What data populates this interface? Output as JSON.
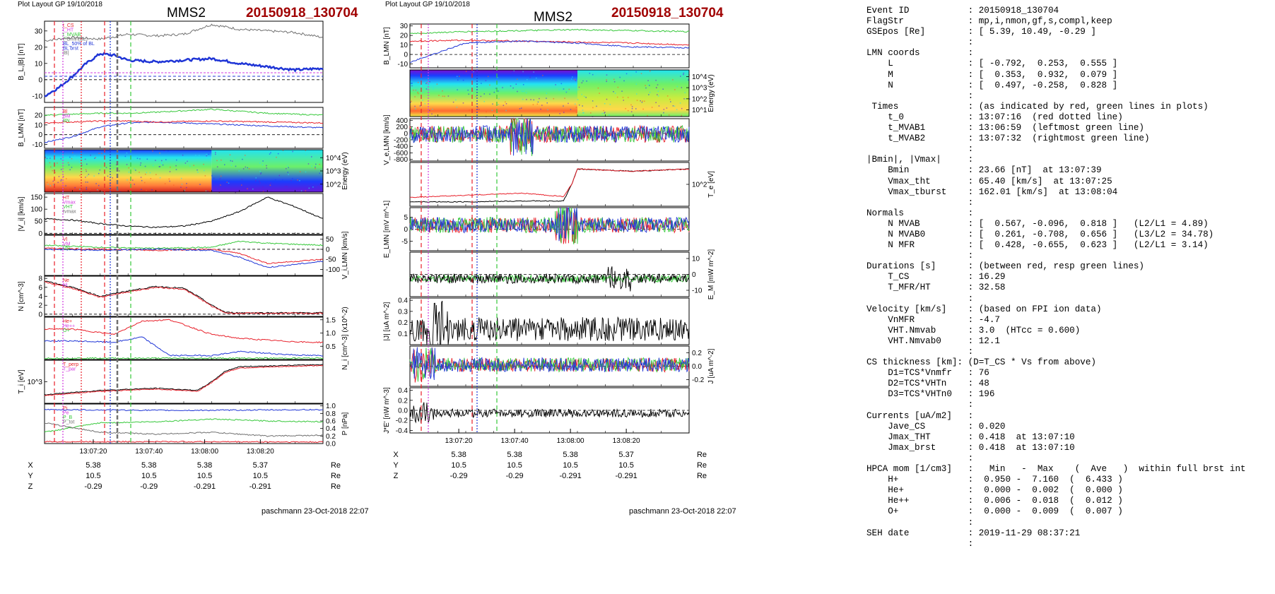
{
  "left": {
    "header_note": "Plot Layout GP 19/10/2018",
    "spacecraft": "MMS2",
    "event": "20150918_130704",
    "footer": "paschmann 23-Oct-2018 22:07",
    "time_ticks": [
      "13:07:20",
      "13:07:40",
      "13:08:00",
      "13:08:20"
    ],
    "position_rows": [
      {
        "label": "X",
        "values": [
          "5.38",
          "5.38",
          "5.38",
          "5.37"
        ],
        "unit": "Re"
      },
      {
        "label": "Y",
        "values": [
          "10.5",
          "10.5",
          "10.5",
          "10.5"
        ],
        "unit": "Re"
      },
      {
        "label": "Z",
        "values": [
          "-0.29",
          "-0.29",
          "-0.291",
          "-0.291"
        ],
        "unit": "Re"
      }
    ]
  },
  "right": {
    "header_note": "Plot Layout GP 19/10/2018",
    "spacecraft": "MMS2",
    "event": "20150918_130704",
    "footer": "paschmann 23-Oct-2018 22:07",
    "time_ticks": [
      "13:07:20",
      "13:07:40",
      "13:08:00",
      "13:08:20"
    ],
    "position_rows": [
      {
        "label": "X",
        "values": [
          "5.38",
          "5.38",
          "5.38",
          "5.37"
        ],
        "unit": "Re"
      },
      {
        "label": "Y",
        "values": [
          "10.5",
          "10.5",
          "10.5",
          "10.5"
        ],
        "unit": "Re"
      },
      {
        "label": "Z",
        "values": [
          "-0.29",
          "-0.29",
          "-0.291",
          "-0.291"
        ],
        "unit": "Re"
      }
    ]
  },
  "colors": {
    "blue": "#1f35d6",
    "red": "#e8202a",
    "green": "#36c83a",
    "gray": "#707070",
    "magenta": "#d23be0",
    "darkred": "#a00000"
  },
  "info_lines": [
    "Event ID           : 20150918_130704",
    "FlagStr            : mp,i,nmon,gf,s,compl,keep",
    "GSEpos [Re]        : [ 5.39, 10.49, -0.29 ]",
    "                   :",
    "LMN coords         :",
    "    L              : [ -0.792,  0.253,  0.555 ]",
    "    M              : [  0.353,  0.932,  0.079 ]",
    "    N              : [  0.497, -0.258,  0.828 ]",
    "                   :",
    " Times             : (as indicated by red, green lines in plots)",
    "    t_0            : 13:07:16  (red dotted line)",
    "    t_MVAB1        : 13:06:59  (leftmost green line)",
    "    t_MVAB2        : 13:07:32  (rightmost green line)",
    "                   :",
    "|Bmin|, |Vmax|     :",
    "    Bmin           : 23.66 [nT]  at 13:07:39",
    "    Vmax_tht       : 65.40 [km/s]  at 13:07:25",
    "    Vmax_tburst    : 162.01 [km/s]  at 13:08:04",
    "                   :",
    "Normals            :",
    "    N MVAB         : [  0.567, -0.096,  0.818 ]   (L2/L1 = 4.89)",
    "    N MVAB0        : [  0.261, -0.708,  0.656 ]   (L3/L2 = 34.78)",
    "    N MFR          : [  0.428, -0.655,  0.623 ]   (L2/L1 = 3.14)",
    "                   :",
    "Durations [s]      : (between red, resp green lines)",
    "    T_CS           : 16.29",
    "    T_MFR/HT       : 32.58",
    "                   :",
    "Velocity [km/s]    : (based on FPI ion data)",
    "    VnMFR          : -4.7",
    "    VHT.Nmvab      : 3.0  (HTcc = 0.600)",
    "    VHT.Nmvab0     : 12.1",
    "                   :",
    "CS thickness [km]: (D=T_CS * Vs from above)",
    "    D1=TCS*Vnmfr   : 76",
    "    D2=TCS*VHTn    : 48",
    "    D3=TCS*VHTn0   : 196",
    "                   :",
    "Currents [uA/m2]   :",
    "    Jave_CS        : 0.020",
    "    Jmax_THT       : 0.418  at 13:07:10",
    "    Jmax_brst      : 0.418  at 13:07:10",
    "                   :",
    "HPCA mom [1/cm3]   :   Min   -  Max    (  Ave   )  within full brst int",
    "    H+             :  0.950 -  7.160  (  6.433 )",
    "    He+            :  0.000 -  0.002  (  0.000 )",
    "    He++           :  0.006 -  0.018  (  0.012 )",
    "    O+             :  0.000 -  0.009  (  0.007 )",
    "                   :",
    "SEH date           : 2019-11-29 08:37:21",
    "                   :"
  ],
  "chart_data": [
    {
      "type": "line",
      "panel": "left-1",
      "ylabel": "B_L,|B| [nT]",
      "yticks": [
        "30",
        "20",
        "10",
        "0",
        "-10"
      ],
      "ylim": [
        -14,
        36
      ],
      "legend": [
        "t_CS",
        "t_HT",
        "t_MVAB",
        "t_Bmin(BL)",
        "BL_50% of BL",
        "BL brst",
        "|B|"
      ],
      "series": [
        {
          "name": "|B|",
          "color": "gray",
          "x": [
            0,
            10,
            20,
            30,
            40,
            50,
            60,
            70,
            80,
            90,
            100
          ],
          "y": [
            24,
            26,
            25,
            28,
            27,
            28,
            34,
            31,
            30,
            29,
            26
          ]
        },
        {
          "name": "BL",
          "color": "blue",
          "x": [
            0,
            5,
            10,
            15,
            20,
            25,
            30,
            40,
            50,
            60,
            70,
            80,
            90,
            100
          ],
          "y": [
            -10,
            -5,
            2,
            10,
            16,
            15,
            12,
            11,
            12,
            13,
            10,
            8,
            6,
            7
          ]
        }
      ]
    },
    {
      "type": "line",
      "panel": "left-2",
      "ylabel": "B_LMN [nT]",
      "yticks": [
        "20",
        "10",
        "0",
        "-10"
      ],
      "ylim": [
        -14,
        28
      ],
      "legend": [
        "Bl",
        "BM",
        "BN"
      ],
      "series": [
        {
          "name": "BL",
          "color": "blue",
          "x": [
            0,
            10,
            20,
            30,
            40,
            60,
            80,
            100
          ],
          "y": [
            -8,
            -2,
            8,
            12,
            13,
            11,
            9,
            7
          ]
        },
        {
          "name": "BM",
          "color": "green",
          "x": [
            0,
            10,
            20,
            30,
            40,
            60,
            80,
            100
          ],
          "y": [
            20,
            21,
            22,
            22,
            23,
            26,
            22,
            20
          ]
        },
        {
          "name": "BN",
          "color": "red",
          "x": [
            0,
            10,
            20,
            30,
            40,
            60,
            80,
            100
          ],
          "y": [
            12,
            13,
            14,
            14,
            13,
            14,
            13,
            12
          ]
        }
      ]
    },
    {
      "type": "heatmap",
      "panel": "left-3",
      "ylabel": "Energy (eV)",
      "yticks": [
        "10^4",
        "10^3",
        "10^2"
      ],
      "note": "ion energy spectrogram"
    },
    {
      "type": "line",
      "panel": "left-4",
      "ylabel": "|V_i| [km/s]",
      "yticks": [
        "150",
        "100",
        "50",
        "0"
      ],
      "ylim": [
        -5,
        165
      ],
      "legend": [
        "HT",
        "Vmax",
        "VHT",
        "tvmax"
      ],
      "series": [
        {
          "name": "|Vi|",
          "color": "black",
          "x": [
            0,
            10,
            20,
            30,
            40,
            50,
            60,
            70,
            80,
            90,
            100
          ],
          "y": [
            60,
            55,
            40,
            30,
            25,
            30,
            50,
            90,
            150,
            110,
            60
          ]
        }
      ]
    },
    {
      "type": "line",
      "panel": "left-5",
      "ylabel": "V_i,LMN [km/s]",
      "yticks": [
        "50",
        "0",
        "-50",
        "-100"
      ],
      "ylim": [
        -130,
        70
      ],
      "legend": [
        "Vl",
        "VM",
        "VN"
      ],
      "series": [
        {
          "name": "VL",
          "color": "green",
          "x": [
            0,
            20,
            40,
            60,
            70,
            80,
            100
          ],
          "y": [
            20,
            10,
            5,
            10,
            40,
            30,
            20
          ]
        },
        {
          "name": "VM",
          "color": "red",
          "x": [
            0,
            20,
            40,
            60,
            70,
            80,
            100
          ],
          "y": [
            5,
            0,
            -5,
            0,
            -20,
            -70,
            -50
          ]
        },
        {
          "name": "VN",
          "color": "blue",
          "x": [
            0,
            20,
            40,
            60,
            70,
            80,
            100
          ],
          "y": [
            0,
            -5,
            0,
            -5,
            -40,
            -90,
            -60
          ]
        }
      ]
    },
    {
      "type": "line",
      "panel": "left-6",
      "ylabel": "N [cm^-3]",
      "yticks": [
        "8",
        "6",
        "4",
        "2",
        "0"
      ],
      "ylim": [
        -0.5,
        8.5
      ],
      "legend": [
        "Ne",
        "Ni"
      ],
      "series": [
        {
          "name": "Ne",
          "color": "black",
          "x": [
            0,
            10,
            20,
            30,
            40,
            50,
            55,
            60,
            65,
            70,
            100
          ],
          "y": [
            7.5,
            6,
            4,
            5.2,
            6.2,
            5.8,
            4,
            2,
            0.4,
            0.3,
            0.3
          ]
        },
        {
          "name": "Ni",
          "color": "red",
          "x": [
            0,
            10,
            20,
            30,
            40,
            50,
            55,
            60,
            65,
            70,
            100
          ],
          "y": [
            7.2,
            5.8,
            3.8,
            5,
            6,
            5.6,
            3.8,
            1.8,
            0.3,
            0.2,
            0.2
          ]
        }
      ]
    },
    {
      "type": "line",
      "panel": "left-7",
      "ylabel": "N_i [cm^-3] (x10^-2)",
      "yticks": [
        "1.5",
        "1.0",
        "0.5"
      ],
      "ylim": [
        0,
        1.6
      ],
      "legend": [
        "He+",
        "He++",
        "O+"
      ],
      "series": [
        {
          "name": "He++",
          "color": "red",
          "x": [
            10,
            25,
            35,
            45,
            60,
            70,
            85,
            95
          ],
          "y": [
            1.15,
            0.95,
            1.45,
            1.5,
            0.95,
            0.8,
            0.7,
            0.65
          ]
        },
        {
          "name": "O+",
          "color": "blue",
          "x": [
            10,
            25,
            35,
            45,
            60,
            70,
            85,
            95
          ],
          "y": [
            0.7,
            0.65,
            0.85,
            0.15,
            0.15,
            0.3,
            0.2,
            0.15
          ]
        },
        {
          "name": "He+",
          "color": "green",
          "x": [
            10,
            25,
            35,
            45,
            60,
            70,
            85,
            95
          ],
          "y": [
            0.05,
            0.05,
            0.05,
            0.05,
            0.05,
            0.05,
            0.05,
            0.05
          ]
        }
      ]
    },
    {
      "type": "line",
      "panel": "left-8",
      "ylabel": "T_i [eV]",
      "yticks": [
        "10^3"
      ],
      "legend": [
        "T_perp",
        "T_par"
      ],
      "series": [
        {
          "name": "Ti",
          "color": "black",
          "x": [
            0,
            20,
            40,
            55,
            60,
            65,
            70,
            100
          ],
          "y": [
            0.2,
            0.3,
            0.35,
            0.3,
            0.5,
            0.75,
            0.85,
            0.9
          ]
        },
        {
          "name": "Ti_red",
          "color": "red",
          "x": [
            0,
            20,
            40,
            55,
            60,
            65,
            70,
            100
          ],
          "y": [
            0.18,
            0.28,
            0.33,
            0.28,
            0.48,
            0.72,
            0.82,
            0.88
          ]
        }
      ]
    },
    {
      "type": "line",
      "panel": "left-9",
      "ylabel": "P [nPa]",
      "yticks": [
        "1.0",
        "0.8",
        "0.6",
        "0.4",
        "0.2",
        "0.0"
      ],
      "ylim": [
        0,
        1.05
      ],
      "legend": [
        "Pi",
        "Pe",
        "P_B",
        "P_tot"
      ],
      "series": [
        {
          "name": "Ptot",
          "color": "blue",
          "x": [
            0,
            50,
            100
          ],
          "y": [
            0.9,
            0.88,
            0.9
          ]
        },
        {
          "name": "PB",
          "color": "green",
          "x": [
            0,
            20,
            40,
            60,
            80,
            100
          ],
          "y": [
            0.3,
            0.55,
            0.58,
            0.65,
            0.6,
            0.58
          ]
        },
        {
          "name": "Pi",
          "color": "gray",
          "x": [
            0,
            20,
            40,
            60,
            80,
            100
          ],
          "y": [
            0.55,
            0.3,
            0.25,
            0.3,
            0.2,
            0.22
          ]
        },
        {
          "name": "Pe",
          "color": "red",
          "x": [
            0,
            50,
            100
          ],
          "y": [
            0.05,
            0.05,
            0.04
          ]
        }
      ]
    },
    {
      "type": "line",
      "panel": "right-1",
      "ylabel": "B_LMN [nT]",
      "yticks": [
        "30",
        "20",
        "10",
        "0",
        "-10"
      ],
      "ylim": [
        -14,
        32
      ],
      "series": [
        {
          "name": "BM",
          "color": "green",
          "x": [
            0,
            20,
            40,
            60,
            80,
            100
          ],
          "y": [
            22,
            24,
            25,
            26,
            25,
            24
          ]
        },
        {
          "name": "BN",
          "color": "red",
          "x": [
            0,
            20,
            40,
            60,
            80,
            100
          ],
          "y": [
            14,
            15,
            14,
            13,
            12,
            10
          ]
        },
        {
          "name": "BL",
          "color": "blue",
          "x": [
            0,
            10,
            20,
            40,
            60,
            80,
            100
          ],
          "y": [
            -8,
            2,
            12,
            14,
            12,
            8,
            7
          ]
        }
      ]
    },
    {
      "type": "heatmap",
      "panel": "right-2",
      "ylabel": "Energy (eV)",
      "yticks": [
        "10^4",
        "10^3",
        "10^2",
        "10^1"
      ],
      "note": "electron energy spectrogram"
    },
    {
      "type": "line",
      "panel": "right-3",
      "ylabel": "V_e,LMN [km/s]",
      "yticks": [
        "400",
        "200",
        "0",
        "-200",
        "-400",
        "-600",
        "-800"
      ],
      "ylim": [
        -850,
        450
      ],
      "note": "noisy electron velocity components"
    },
    {
      "type": "line",
      "panel": "right-4",
      "ylabel": "T_e [eV]",
      "yticks": [
        "10^2"
      ],
      "series": [
        {
          "name": "Te",
          "color": "black",
          "x": [
            0,
            20,
            40,
            55,
            58,
            60,
            80,
            100
          ],
          "y": [
            0.1,
            0.1,
            0.12,
            0.12,
            0.5,
            0.85,
            0.8,
            0.85
          ]
        },
        {
          "name": "Te_red",
          "color": "red",
          "x": [
            0,
            20,
            40,
            55,
            58,
            60,
            80,
            100
          ],
          "y": [
            0.2,
            0.25,
            0.3,
            0.22,
            0.5,
            0.85,
            0.8,
            0.85
          ]
        }
      ]
    },
    {
      "type": "line",
      "panel": "right-5",
      "ylabel": "E_LMN [mV m^-1]",
      "yticks": [
        "5",
        "0",
        "-5"
      ],
      "ylim": [
        -9,
        9
      ]
    },
    {
      "type": "line",
      "panel": "right-6",
      "ylabel": "E_M [mW m^-2]",
      "yticks": [
        "10",
        "0",
        "-10"
      ],
      "ylim": [
        -14,
        14
      ]
    },
    {
      "type": "line",
      "panel": "right-7",
      "ylabel": "|J| [uA m^-2]",
      "yticks": [
        "0.4",
        "0.3",
        "0.2",
        "0.1"
      ],
      "ylim": [
        0,
        0.42
      ]
    },
    {
      "type": "line",
      "panel": "right-8",
      "ylabel": "J [uA m^-2]",
      "yticks": [
        "0.2",
        "0.0",
        "-0.2"
      ],
      "ylim": [
        -0.3,
        0.3
      ]
    },
    {
      "type": "line",
      "panel": "right-9",
      "ylabel": "J*E' [nW m^-3]",
      "yticks": [
        "0.4",
        "0.2",
        "0.0",
        "-0.2",
        "-0.4"
      ],
      "ylim": [
        -0.45,
        0.45
      ]
    }
  ]
}
